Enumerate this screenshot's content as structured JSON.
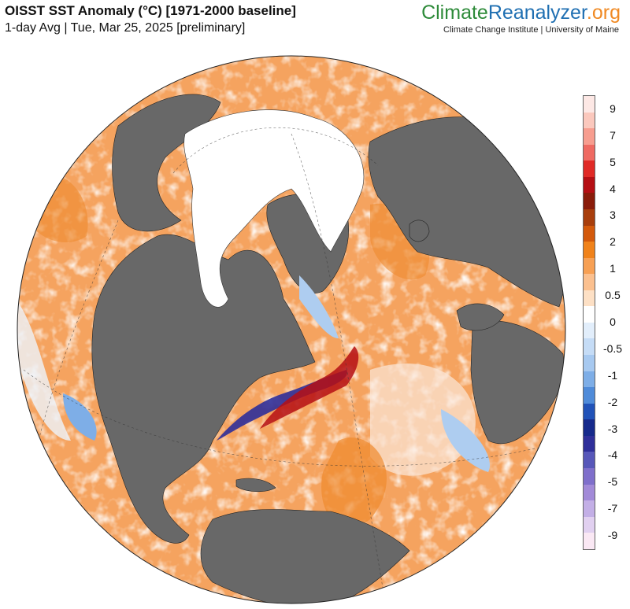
{
  "header": {
    "title": "OISST SST Anomaly (°C) [1971-2000 baseline]",
    "subtitle": "1-day Avg | Tue, Mar 25, 2025 [preliminary]"
  },
  "brand": {
    "part1": "Climate",
    "part2": "Reanalyzer",
    "part3": ".org",
    "subtitle": "Climate Change Institute | University of Maine",
    "colors": {
      "climate": "#2e8b3a",
      "reanalyzer": "#1f6fb2",
      "org": "#f08a24"
    }
  },
  "map": {
    "projection": "orthographic globe centered on North Atlantic",
    "colors": {
      "land": "#686868",
      "sea_ice": "#ffffff",
      "warm": "#f5a35f",
      "warm_strong": "#e86d12",
      "cool": "#aecdf0",
      "cold": "#3a3aa8"
    }
  },
  "legend": {
    "labels": [
      "9",
      "7",
      "5",
      "4",
      "3",
      "2",
      "1",
      "0.5",
      "0",
      "-0.5",
      "-1",
      "-2",
      "-3",
      "-4",
      "-5",
      "-7",
      "-9"
    ],
    "colors": [
      "#fde8e5",
      "#fbc8bd",
      "#f79d8f",
      "#ef6a62",
      "#e02a26",
      "#b50f14",
      "#8a1c0a",
      "#a83e0c",
      "#d3590b",
      "#f0821a",
      "#f7a054",
      "#fbc08f",
      "#fde0c5",
      "#ffffff",
      "#e2eefb",
      "#c5dcf6",
      "#a7c9f0",
      "#7eaee7",
      "#4f8bd9",
      "#2152b8",
      "#162a8c",
      "#2f2f9a",
      "#5757b9",
      "#7f6fcb",
      "#a28ad8",
      "#c3afe6",
      "#e1d0f0",
      "#fae8f4"
    ]
  }
}
